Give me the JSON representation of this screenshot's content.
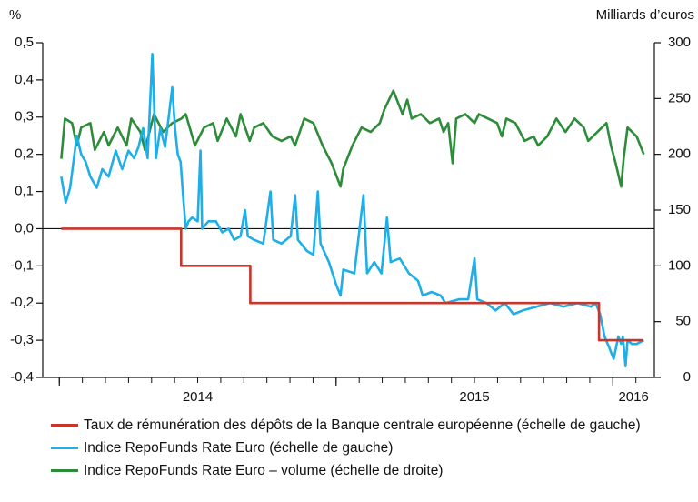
{
  "chart_data": {
    "type": "line",
    "y_label": "%",
    "y2_label": "Milliards d’euros",
    "xlim": [
      2013.94,
      2016.15
    ],
    "xticks": [
      2014,
      2015,
      2016
    ],
    "ylim": [
      -0.4,
      0.5
    ],
    "yticks": [
      {
        "value": -0.4,
        "label": "-0,4"
      },
      {
        "value": -0.3,
        "label": "-0,3"
      },
      {
        "value": -0.2,
        "label": "-0,2"
      },
      {
        "value": -0.1,
        "label": "-0,1"
      },
      {
        "value": 0,
        "label": "0,0"
      },
      {
        "value": 0.1,
        "label": "0,1"
      },
      {
        "value": 0.2,
        "label": "0,2"
      },
      {
        "value": 0.3,
        "label": "0,3"
      },
      {
        "value": 0.4,
        "label": "0,4"
      },
      {
        "value": 0.5,
        "label": "0,5"
      }
    ],
    "y2lim": [
      0,
      300
    ],
    "y2ticks": [
      0,
      50,
      100,
      150,
      200,
      250,
      300
    ],
    "zero_line": true,
    "series": [
      {
        "name": "Taux de rémunération des dépôts de la Banque centrale européenne (échelle de gauche)",
        "color": "#c8352b",
        "axis": "y",
        "x": [
          2014.007,
          2014.44,
          2014.44,
          2014.69,
          2014.69,
          2015.95,
          2015.95,
          2016.11
        ],
        "values": [
          0,
          0,
          -0.1,
          -0.1,
          -0.2,
          -0.2,
          -0.3,
          -0.3
        ]
      },
      {
        "name": "Indice RepoFunds Rate Euro (échelle de gauche)",
        "color": "#1eaee8",
        "axis": "y",
        "x": [
          2014.007,
          2014.023,
          2014.039,
          2014.063,
          2014.079,
          2014.095,
          2014.112,
          2014.135,
          2014.155,
          2014.178,
          2014.204,
          2014.227,
          2014.25,
          2014.27,
          2014.286,
          2014.303,
          2014.319,
          2014.336,
          2014.349,
          2014.365,
          2014.382,
          2014.395,
          2014.408,
          2014.418,
          2014.428,
          2014.438,
          2014.447,
          2014.457,
          2014.467,
          2014.48,
          2014.5,
          2014.51,
          2014.516,
          2014.539,
          2014.566,
          2014.589,
          2014.612,
          2014.632,
          2014.655,
          2014.671,
          2014.681,
          2014.704,
          2014.737,
          2014.763,
          2014.773,
          2014.803,
          2014.836,
          2014.852,
          2014.862,
          2014.895,
          2014.918,
          2014.934,
          2014.944,
          2014.974,
          2015.0,
          2015.016,
          2015.026,
          2015.066,
          2015.099,
          2015.112,
          2015.138,
          2015.164,
          2015.184,
          2015.197,
          2015.23,
          2015.263,
          2015.296,
          2015.313,
          2015.345,
          2015.378,
          2015.395,
          2015.444,
          2015.477,
          2015.5,
          2015.51,
          2015.543,
          2015.576,
          2015.609,
          2015.641,
          2015.674,
          2015.724,
          2015.773,
          2015.822,
          2015.872,
          2015.921,
          2015.938,
          2015.954,
          2015.97,
          2015.987,
          2016.003,
          2016.02,
          2016.03,
          2016.036,
          2016.046,
          2016.053,
          2016.069,
          2016.086,
          2016.112
        ],
        "values": [
          0.14,
          0.07,
          0.11,
          0.25,
          0.2,
          0.18,
          0.14,
          0.11,
          0.16,
          0.14,
          0.21,
          0.16,
          0.21,
          0.19,
          0.22,
          0.27,
          0.19,
          0.47,
          0.19,
          0.27,
          0.22,
          0.3,
          0.38,
          0.27,
          0.2,
          0.18,
          0.09,
          0.0,
          0.02,
          0.03,
          0.02,
          0.21,
          0.0,
          0.02,
          0.02,
          -0.01,
          0.0,
          -0.03,
          -0.02,
          0.05,
          -0.02,
          -0.03,
          -0.04,
          0.1,
          -0.03,
          -0.04,
          -0.02,
          0.09,
          -0.03,
          -0.06,
          -0.07,
          0.1,
          -0.04,
          -0.09,
          -0.15,
          -0.18,
          -0.11,
          -0.12,
          0.09,
          -0.12,
          -0.09,
          -0.12,
          0.03,
          -0.09,
          -0.08,
          -0.12,
          -0.14,
          -0.18,
          -0.17,
          -0.18,
          -0.2,
          -0.19,
          -0.19,
          -0.08,
          -0.19,
          -0.2,
          -0.22,
          -0.2,
          -0.23,
          -0.22,
          -0.21,
          -0.2,
          -0.21,
          -0.2,
          -0.21,
          -0.2,
          -0.23,
          -0.29,
          -0.32,
          -0.35,
          -0.29,
          -0.31,
          -0.29,
          -0.37,
          -0.3,
          -0.31,
          -0.31,
          -0.3
        ]
      },
      {
        "name": "Indice RepoFunds Rate Euro – volume (échelle de droite)",
        "color": "#2d8c3a",
        "axis": "y2",
        "x": [
          2014.007,
          2014.02,
          2014.046,
          2014.063,
          2014.079,
          2014.112,
          2014.128,
          2014.161,
          2014.178,
          2014.211,
          2014.243,
          2014.26,
          2014.293,
          2014.309,
          2014.342,
          2014.375,
          2014.408,
          2014.441,
          2014.457,
          2014.49,
          2014.523,
          2014.556,
          2014.572,
          2014.605,
          2014.638,
          2014.655,
          2014.688,
          2014.704,
          2014.737,
          2014.77,
          2014.803,
          2014.836,
          2014.852,
          2014.885,
          2014.918,
          2014.951,
          2014.984,
          2015.016,
          2015.026,
          2015.059,
          2015.092,
          2015.125,
          2015.158,
          2015.174,
          2015.207,
          2015.24,
          2015.257,
          2015.273,
          2015.306,
          2015.339,
          2015.372,
          2015.388,
          2015.405,
          2015.421,
          2015.434,
          2015.467,
          2015.5,
          2015.516,
          2015.549,
          2015.582,
          2015.599,
          2015.615,
          2015.648,
          2015.681,
          2015.714,
          2015.73,
          2015.763,
          2015.796,
          2015.829,
          2015.862,
          2015.895,
          2015.911,
          2015.944,
          2015.977,
          2015.993,
          2016.01,
          2016.03,
          2016.039,
          2016.053,
          2016.086,
          2016.112
        ],
        "values": [
          196,
          232,
          228,
          208,
          224,
          228,
          204,
          220,
          208,
          224,
          208,
          232,
          220,
          204,
          236,
          220,
          228,
          232,
          236,
          208,
          224,
          228,
          212,
          232,
          216,
          236,
          212,
          224,
          228,
          216,
          212,
          216,
          208,
          232,
          228,
          208,
          192,
          171,
          187,
          208,
          224,
          220,
          228,
          240,
          257,
          236,
          249,
          232,
          236,
          228,
          232,
          220,
          228,
          192,
          232,
          236,
          228,
          236,
          232,
          228,
          216,
          232,
          228,
          212,
          216,
          208,
          216,
          232,
          220,
          232,
          224,
          212,
          220,
          228,
          208,
          192,
          171,
          196,
          224,
          216,
          200
        ]
      }
    ]
  }
}
